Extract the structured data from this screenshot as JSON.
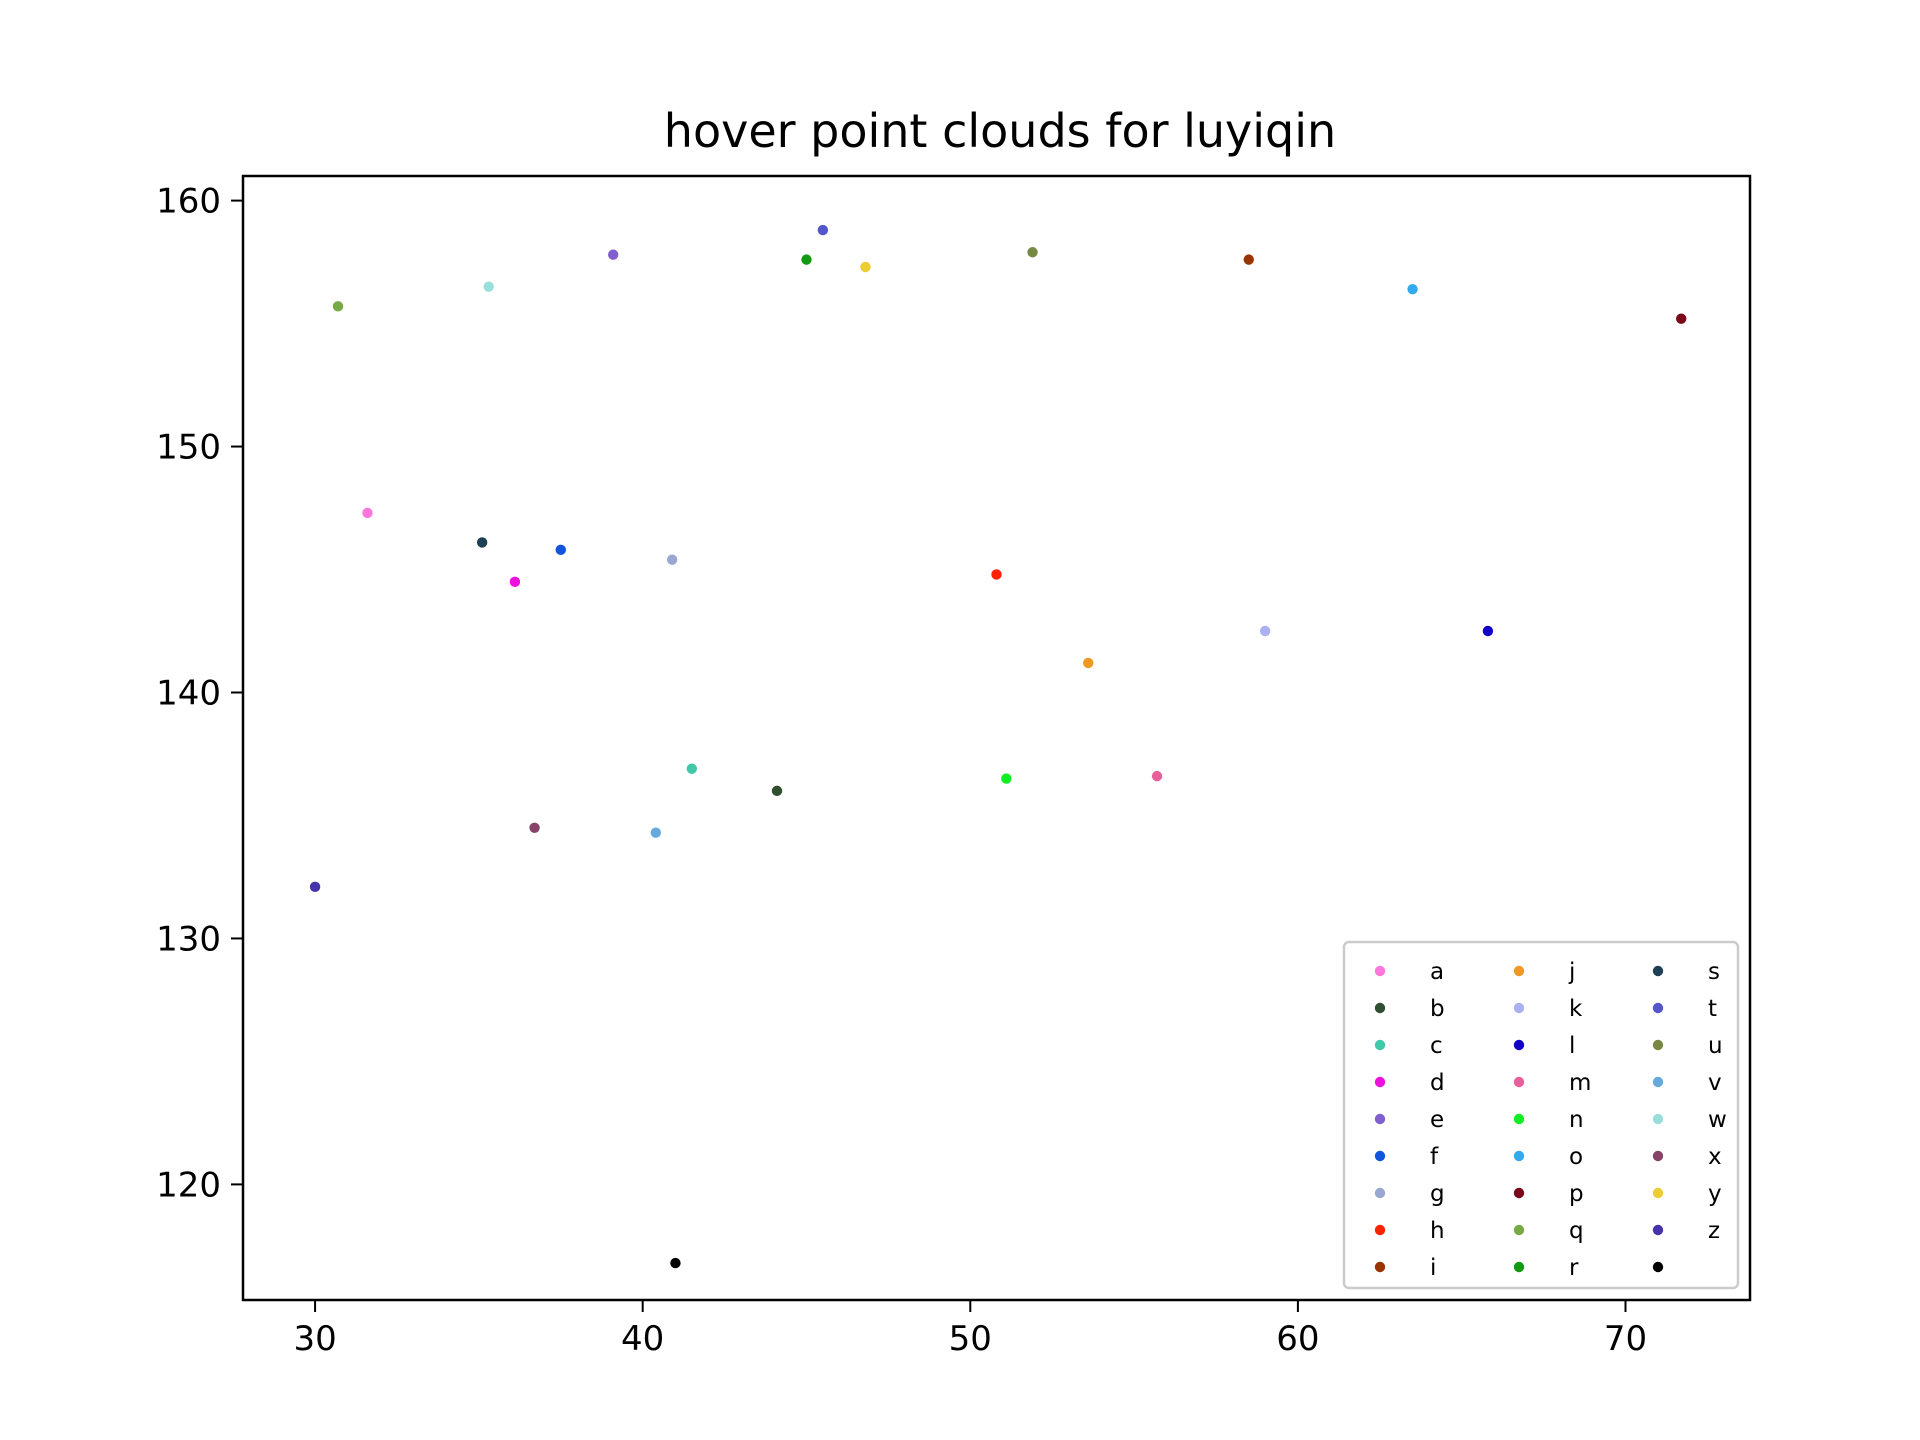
{
  "chart_data": {
    "type": "scatter",
    "title": "hover point clouds for luyiqin",
    "xlabel": "",
    "ylabel": "",
    "xlim": [
      27.8,
      73.8
    ],
    "ylim": [
      115.3,
      161.0
    ],
    "xticks": [
      30,
      40,
      50,
      60,
      70
    ],
    "yticks": [
      120,
      130,
      140,
      150,
      160
    ],
    "grid": false,
    "legend": {
      "placement": "lower-right",
      "columns": 3
    },
    "series": [
      {
        "name": "a",
        "color": "#ff77dd",
        "x": 31.6,
        "y": 147.3
      },
      {
        "name": "b",
        "color": "#2f4f2f",
        "x": 44.1,
        "y": 136.0
      },
      {
        "name": "c",
        "color": "#40c8a8",
        "x": 41.5,
        "y": 136.9
      },
      {
        "name": "d",
        "color": "#ee11dd",
        "x": 36.1,
        "y": 144.5
      },
      {
        "name": "e",
        "color": "#8060cc",
        "x": 39.1,
        "y": 157.8
      },
      {
        "name": "f",
        "color": "#1155dd",
        "x": 37.5,
        "y": 145.8
      },
      {
        "name": "g",
        "color": "#98a8d0",
        "x": 40.9,
        "y": 145.4
      },
      {
        "name": "h",
        "color": "#ff2200",
        "x": 50.8,
        "y": 144.8
      },
      {
        "name": "i",
        "color": "#993300",
        "x": 58.5,
        "y": 157.6
      },
      {
        "name": "j",
        "color": "#ee9922",
        "x": 53.6,
        "y": 141.2
      },
      {
        "name": "k",
        "color": "#aab0f0",
        "x": 59.0,
        "y": 142.5
      },
      {
        "name": "l",
        "color": "#1100cc",
        "x": 65.8,
        "y": 142.5
      },
      {
        "name": "m",
        "color": "#e8609a",
        "x": 55.7,
        "y": 136.6
      },
      {
        "name": "n",
        "color": "#11ee22",
        "x": 51.1,
        "y": 136.5
      },
      {
        "name": "o",
        "color": "#33aaee",
        "x": 63.5,
        "y": 156.4
      },
      {
        "name": "p",
        "color": "#7a0818",
        "x": 71.7,
        "y": 155.2
      },
      {
        "name": "q",
        "color": "#77aa44",
        "x": 30.7,
        "y": 155.7
      },
      {
        "name": "r",
        "color": "#119911",
        "x": 45.0,
        "y": 157.6
      },
      {
        "name": "s",
        "color": "#1f3f55",
        "x": 35.1,
        "y": 146.1
      },
      {
        "name": "t",
        "color": "#5555cc",
        "x": 45.5,
        "y": 158.8
      },
      {
        "name": "u",
        "color": "#778844",
        "x": 51.9,
        "y": 157.9
      },
      {
        "name": "v",
        "color": "#66aadd",
        "x": 40.4,
        "y": 134.3
      },
      {
        "name": "w",
        "color": "#99dddd",
        "x": 35.3,
        "y": 156.5
      },
      {
        "name": "x",
        "color": "#884466",
        "x": 36.7,
        "y": 134.5
      },
      {
        "name": "y",
        "color": "#eecc33",
        "x": 46.8,
        "y": 157.3
      },
      {
        "name": "z",
        "color": "#4433aa",
        "x": 30.0,
        "y": 132.1
      },
      {
        "name": "",
        "color": "#000000",
        "x": 41.0,
        "y": 116.8
      }
    ]
  }
}
